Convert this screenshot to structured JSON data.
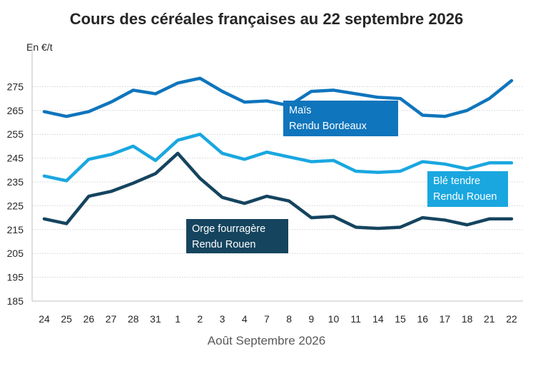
{
  "chart_data": {
    "type": "line",
    "title": "Cours des céréales françaises au 22 septembre 2026",
    "ylabel": "En €/t",
    "xlabel": "Août  Septembre 2026",
    "ylim": [
      185,
      285
    ],
    "yticks": [
      185,
      195,
      205,
      215,
      225,
      235,
      245,
      255,
      265,
      275
    ],
    "grid": "horizontal, dotted",
    "legend": "inline labels",
    "categories": [
      "24",
      "25",
      "26",
      "27",
      "28",
      "31",
      "1",
      "2",
      "3",
      "4",
      "7",
      "8",
      "9",
      "10",
      "11",
      "14",
      "15",
      "16",
      "17",
      "18",
      "21",
      "22"
    ],
    "series": [
      {
        "name": "Maïs Rendu Bordeaux",
        "label_lines": [
          "Maïs",
          "Rendu Bordeaux"
        ],
        "color": "#0F75BC",
        "values": [
          264.5,
          262.5,
          264.5,
          268.5,
          273.5,
          272,
          276.5,
          278.5,
          273,
          268.5,
          269,
          267,
          273,
          273.5,
          272,
          270.5,
          270,
          263,
          262.5,
          265,
          270,
          277.5
        ]
      },
      {
        "name": "Blé tendre Rendu Rouen",
        "label_lines": [
          "Blé tendre",
          "Rendu Rouen"
        ],
        "color": "#1AA7E0",
        "values": [
          237.5,
          235.5,
          244.5,
          246.5,
          250,
          244,
          252.5,
          255,
          247,
          244.5,
          247.5,
          245.5,
          243.5,
          244,
          239.5,
          239,
          239.5,
          243.5,
          242.5,
          240.5,
          243,
          243
        ]
      },
      {
        "name": "Orge fourragère Rendu Rouen",
        "label_lines": [
          "Orge fourragère",
          " Rendu Rouen"
        ],
        "color": "#15445F",
        "values": [
          219.5,
          217.5,
          229,
          231,
          234.5,
          238.5,
          247,
          236.5,
          228.5,
          226,
          229,
          227,
          220,
          220.5,
          216,
          215.5,
          216,
          220,
          219,
          217,
          219.5,
          219.5
        ]
      }
    ]
  }
}
